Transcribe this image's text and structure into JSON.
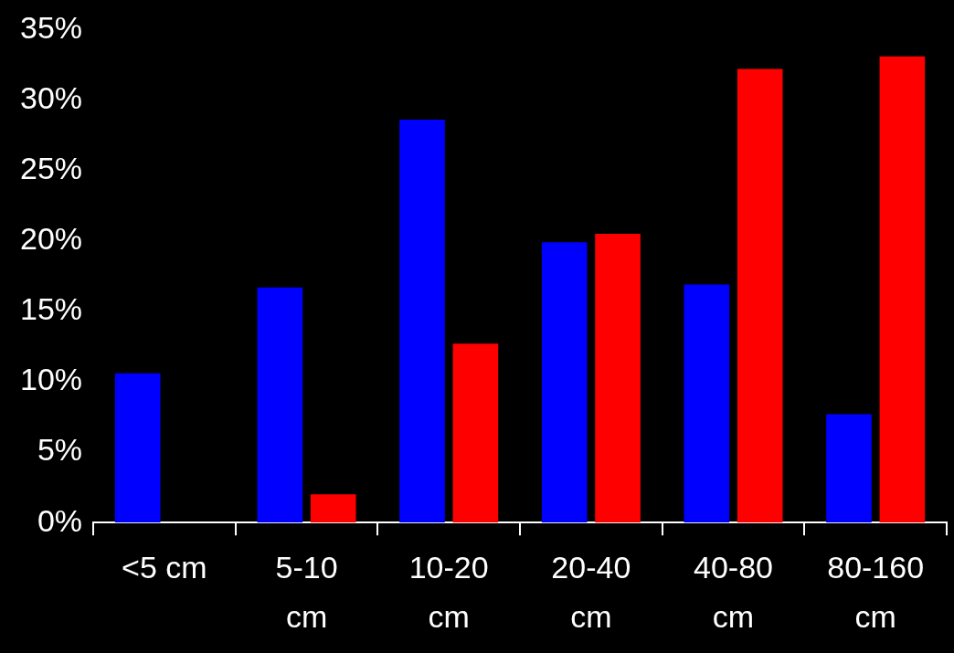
{
  "chart_data": {
    "type": "bar",
    "categories": [
      "<5 cm",
      "5-10 cm",
      "10-20 cm",
      "20-40 cm",
      "40-80 cm",
      "80-160 cm"
    ],
    "series": [
      {
        "color": "#0000ff",
        "values": [
          10.6,
          16.7,
          28.6,
          19.9,
          16.9,
          7.7
        ]
      },
      {
        "color": "#ff0000",
        "values": [
          0,
          2.0,
          12.7,
          20.5,
          32.2,
          33.1
        ]
      }
    ],
    "ylim": [
      0,
      35
    ],
    "yticks": [
      {
        "value": 0,
        "label": "0%"
      },
      {
        "value": 5,
        "label": "5%"
      },
      {
        "value": 10,
        "label": "10%"
      },
      {
        "value": 15,
        "label": "15%"
      },
      {
        "value": 20,
        "label": "20%"
      },
      {
        "value": 25,
        "label": "25%"
      },
      {
        "value": 30,
        "label": "30%"
      },
      {
        "value": 35,
        "label": "35%"
      }
    ],
    "legend": false
  }
}
